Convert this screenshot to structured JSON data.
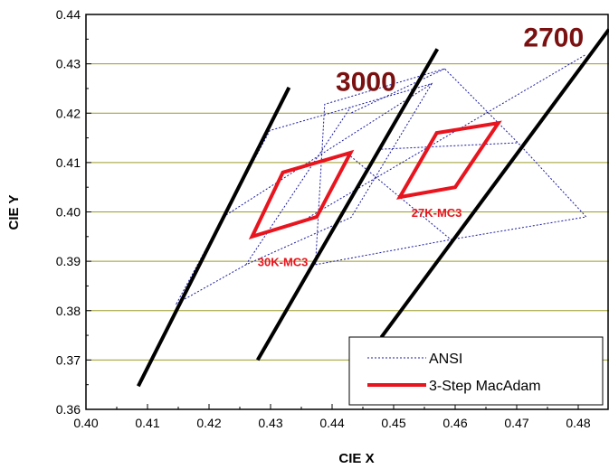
{
  "chart_data": {
    "type": "line",
    "xlabel": "CIE X",
    "ylabel": "CIE Y",
    "xlim": [
      0.4,
      0.485
    ],
    "ylim": [
      0.36,
      0.44
    ],
    "x_ticks": [
      "0.40",
      "0.41",
      "0.42",
      "0.43",
      "0.44",
      "0.45",
      "0.46",
      "0.47",
      "0.48"
    ],
    "y_ticks": [
      "0.36",
      "0.37",
      "0.38",
      "0.39",
      "0.40",
      "0.41",
      "0.42",
      "0.43",
      "0.44"
    ],
    "grid": "horizontal",
    "legend": {
      "placement": "bottom-right",
      "entries": [
        {
          "label": "ANSI",
          "style": "dotted",
          "color": "#1a1aa0"
        },
        {
          "label": "3-Step MacAdam",
          "style": "solid-thick",
          "color": "#e8141e"
        }
      ]
    },
    "cct_lines": [
      {
        "label": "3000",
        "points": [
          [
            0.4085,
            0.3647
          ],
          [
            0.433,
            0.4252
          ]
        ]
      },
      {
        "label": "2700",
        "points": [
          [
            0.4279,
            0.37
          ],
          [
            0.4571,
            0.433
          ]
        ]
      },
      {
        "label": "",
        "points": [
          [
            0.448,
            0.3746
          ],
          [
            0.485,
            0.437
          ]
        ]
      }
    ],
    "ansi_quads": [
      {
        "name": "ANSI 3000K",
        "points": [
          [
            0.4147,
            0.3814
          ],
          [
            0.4299,
            0.4165
          ],
          [
            0.443,
            0.4212
          ],
          [
            0.4562,
            0.426
          ],
          [
            0.4431,
            0.3989
          ],
          [
            0.426,
            0.3893
          ]
        ]
      },
      {
        "name": "ANSI 2700K",
        "points": [
          [
            0.4373,
            0.3893
          ],
          [
            0.4593,
            0.3944
          ],
          [
            0.4813,
            0.399
          ],
          [
            0.4702,
            0.414
          ],
          [
            0.4583,
            0.429
          ],
          [
            0.4388,
            0.4218
          ]
        ]
      }
    ],
    "ansi_extra_lines": [
      [
        [
          0.426,
          0.3893
        ],
        [
          0.443,
          0.4212
        ]
      ],
      [
        [
          0.4223,
          0.399
        ],
        [
          0.4562,
          0.426
        ]
      ],
      [
        [
          0.4362,
          0.3989
        ],
        [
          0.4813,
          0.4319
        ]
      ],
      [
        [
          0.443,
          0.4113
        ],
        [
          0.4593,
          0.3944
        ]
      ],
      [
        [
          0.448,
          0.4127
        ],
        [
          0.4702,
          0.414
        ]
      ],
      [
        [
          0.4583,
          0.429
        ],
        [
          0.443,
          0.42
        ]
      ]
    ],
    "series": [
      {
        "name": "30K-MC3",
        "points": [
          [
            0.427,
            0.395
          ],
          [
            0.432,
            0.408
          ],
          [
            0.443,
            0.412
          ],
          [
            0.4375,
            0.399
          ]
        ]
      },
      {
        "name": "27K-MC3",
        "points": [
          [
            0.451,
            0.403
          ],
          [
            0.457,
            0.416
          ],
          [
            0.467,
            0.418
          ],
          [
            0.46,
            0.405
          ]
        ]
      }
    ],
    "annotations": [
      {
        "text": "3000",
        "x": 0.4455,
        "y": 0.4245,
        "color": "#7a1010"
      },
      {
        "text": "2700",
        "x": 0.476,
        "y": 0.4335,
        "color": "#7a1010"
      },
      {
        "text": "30K-MC3",
        "x": 0.432,
        "y": 0.389,
        "color": "#e8141e"
      },
      {
        "text": "27K-MC3",
        "x": 0.457,
        "y": 0.399,
        "color": "#e8141e"
      }
    ],
    "colors": {
      "grid": "#9c9c2a",
      "ansi": "#1a1aa0",
      "macadam": "#e8141e",
      "cct": "#000000",
      "cct_label": "#7a1010"
    }
  }
}
